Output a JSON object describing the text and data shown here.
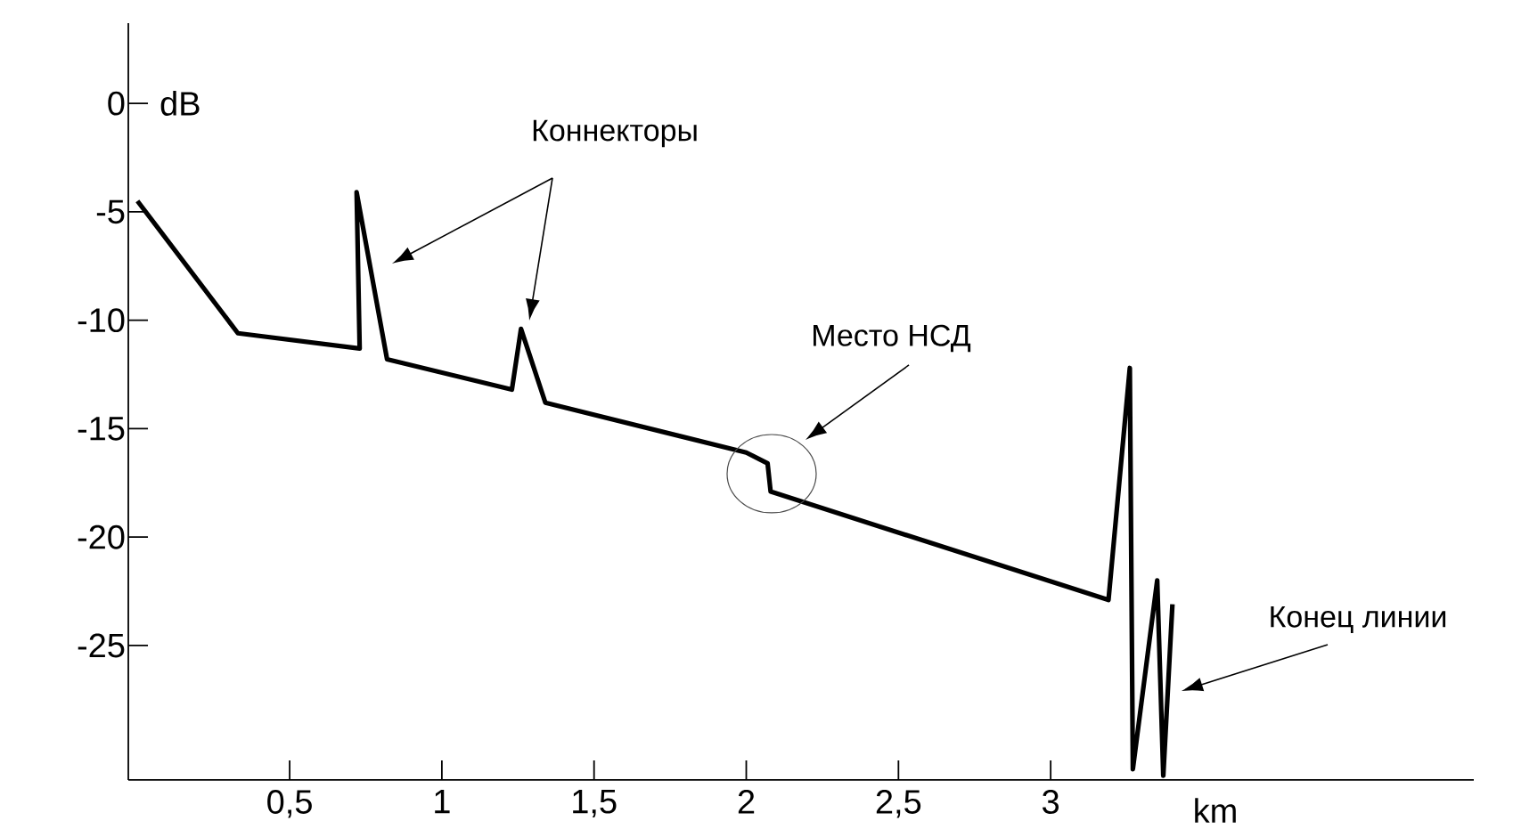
{
  "chart_data": {
    "type": "line",
    "xlabel": "km",
    "ylabel": "dB",
    "x": [
      0,
      0.33,
      0.73,
      0.72,
      0.82,
      1.23,
      1.26,
      1.34,
      2.0,
      2.07,
      2.08,
      3.19,
      3.26,
      3.27,
      3.35,
      3.37,
      3.4
    ],
    "values": [
      -4.5,
      -10.6,
      -11.3,
      -4.1,
      -11.8,
      -13.2,
      -10.4,
      -13.8,
      -16.1,
      -16.6,
      -17.9,
      -22.9,
      -12.2,
      -30.7,
      -22.0,
      -31.0,
      -23.1
    ],
    "color": "#000000",
    "line_style": "solid",
    "marker": "none",
    "grid": false,
    "xlim": [
      -0.03,
      4.39
    ],
    "ylim": [
      -31.2,
      3.7
    ],
    "xticks": [
      {
        "value": 0.5,
        "label": "0,5"
      },
      1,
      {
        "value": 1.5,
        "label": "1,5"
      },
      2,
      {
        "value": 2.5,
        "label": "2,5"
      },
      3
    ],
    "yticks": [
      0,
      -5,
      -10,
      -15,
      -20,
      -25
    ],
    "annotations": [
      "Коннекторы",
      "Место НСД",
      "Конец линии"
    ]
  }
}
